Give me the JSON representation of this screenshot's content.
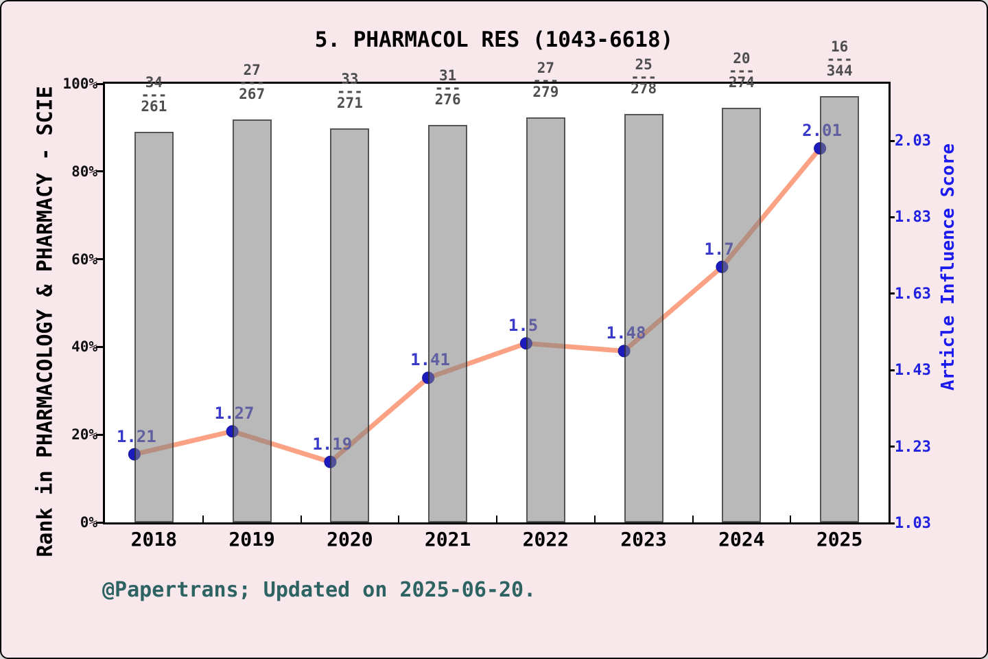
{
  "title": "5. PHARMACOL RES (1043-6618)",
  "footer": {
    "text": "@Papertrans; Updated on 2025-06-20."
  },
  "left_axis": {
    "title": "Rank in PHARMACOLOGY & PHARMACY - SCIE",
    "ticks": [
      "0%",
      "20%",
      "40%",
      "60%",
      "80%",
      "100%"
    ]
  },
  "right_axis": {
    "title": "Article Influence Score",
    "ticks": [
      "1.03",
      "1.23",
      "1.43",
      "1.63",
      "1.83",
      "2.03"
    ]
  },
  "colors": {
    "background": "#F8E7EB",
    "plot_background": "#FFFFFF",
    "bar_fill_effective": "#B9B9B9",
    "line": "#FBA284",
    "marker": "#1B1BBE",
    "value_label": "#3A3ACA",
    "right_axis_blue": "#2020E0",
    "fraction_gray": "#4E4E4E",
    "footer_teal": "#2D6363"
  },
  "chart_data": {
    "type": "bar+line combo",
    "categories": [
      "2018",
      "2019",
      "2020",
      "2021",
      "2022",
      "2023",
      "2024",
      "2025"
    ],
    "series": [
      {
        "name": "Rank in category (bars, left axis percentile)",
        "kind": "bar",
        "ranks": [
          34,
          27,
          33,
          31,
          27,
          25,
          20,
          16
        ],
        "totals": [
          261,
          267,
          271,
          276,
          279,
          278,
          274,
          344
        ],
        "divider": "---",
        "bar_top_percent": [
          89.1,
          91.9,
          89.9,
          90.6,
          92.4,
          93.1,
          94.5,
          97.2
        ]
      },
      {
        "name": "Article Influence Score (line, right axis)",
        "kind": "line",
        "values": [
          1.21,
          1.27,
          1.19,
          1.41,
          1.5,
          1.48,
          1.7,
          2.01
        ],
        "labels": [
          "1.21",
          "1.27",
          "1.19",
          "1.41",
          "1.5",
          "1.48",
          "1.7",
          "2.01"
        ]
      }
    ],
    "left_ylim": [
      0,
      100
    ],
    "right_axis_ticks": [
      1.03,
      1.23,
      1.43,
      1.63,
      1.83,
      2.03
    ],
    "grid": false,
    "legend": "none"
  }
}
